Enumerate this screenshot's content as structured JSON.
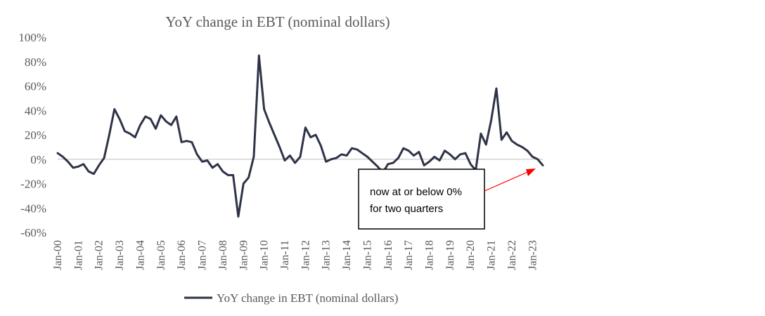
{
  "chart_data": {
    "type": "line",
    "title": "YoY change in EBT (nominal dollars)",
    "xlabel": "",
    "ylabel": "",
    "ylim": [
      -60,
      100
    ],
    "y_ticks": [
      "100%",
      "80%",
      "60%",
      "40%",
      "20%",
      "0%",
      "-20%",
      "-40%",
      "-60%"
    ],
    "y_tick_values": [
      100,
      80,
      60,
      40,
      20,
      0,
      -20,
      -40,
      -60
    ],
    "x_tick_labels": [
      "Jan-00",
      "Jan-01",
      "Jan-02",
      "Jan-03",
      "Jan-04",
      "Jan-05",
      "Jan-06",
      "Jan-07",
      "Jan-08",
      "Jan-09",
      "Jan-10",
      "Jan-11",
      "Jan-12",
      "Jan-13",
      "Jan-14",
      "Jan-15",
      "Jan-16",
      "Jan-17",
      "Jan-18",
      "Jan-19",
      "Jan-20",
      "Jan-21",
      "Jan-22",
      "Jan-23"
    ],
    "grid": false,
    "legend": "bottom",
    "colors": {
      "series": "#2e3347",
      "annotation_arrow": "#ff0000",
      "axis": "#bfbfbf"
    },
    "series": [
      {
        "name": "YoY change in EBT (nominal dollars)",
        "values": [
          5,
          2,
          -2,
          -7,
          -6,
          -4,
          -10,
          -12,
          -5,
          1,
          20,
          41,
          33,
          23,
          21,
          18,
          28,
          35,
          33,
          25,
          36,
          31,
          28,
          35,
          14,
          15,
          14,
          4,
          -2,
          -1,
          -7,
          -4,
          -10,
          -13,
          -13,
          -47,
          -20,
          -15,
          2,
          85,
          41,
          30,
          20,
          10,
          -1,
          3,
          -3,
          2,
          26,
          18,
          20,
          11,
          -2,
          0,
          1,
          4,
          3,
          9,
          8,
          5,
          2,
          -2,
          -6,
          -11,
          -4,
          -3,
          1,
          9,
          7,
          3,
          6,
          -5,
          -2,
          2,
          -1,
          7,
          4,
          0,
          4,
          5,
          -4,
          -9,
          21,
          12,
          32,
          58,
          16,
          22,
          15,
          12,
          10,
          7,
          2,
          0,
          -5
        ]
      }
    ],
    "annotation": {
      "text_lines": [
        "now at or below 0%",
        "for two quarters"
      ]
    }
  }
}
